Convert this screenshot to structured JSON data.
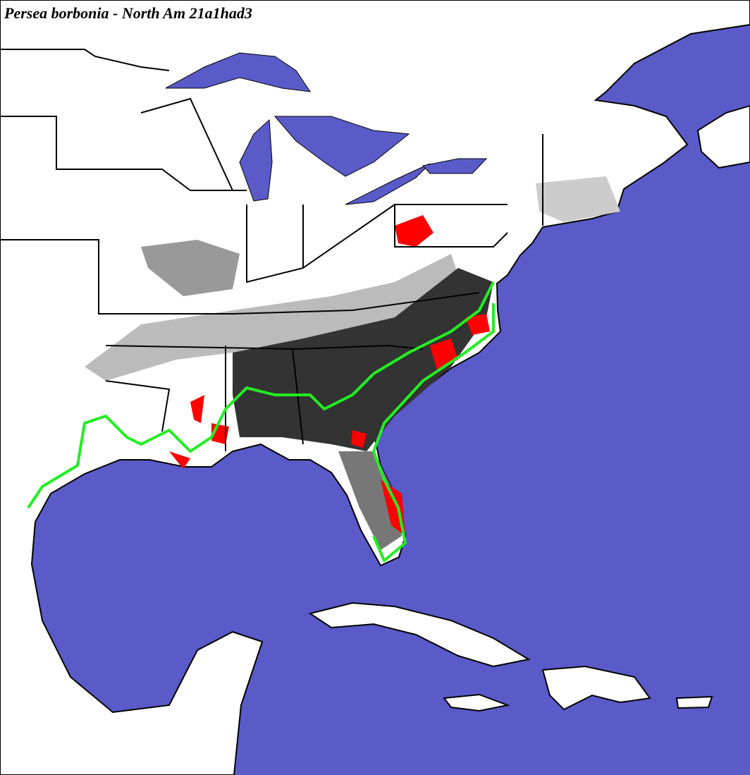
{
  "title": "Persea borbonia - North Am 21a1had3"
}
